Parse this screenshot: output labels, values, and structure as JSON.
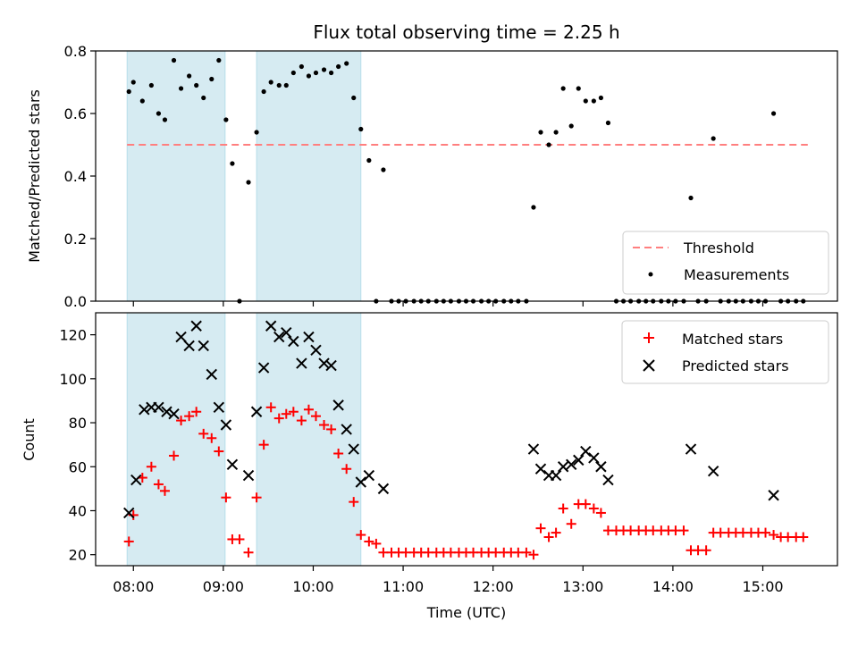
{
  "chart_data": {
    "title": "Flux total observing time = 2.25 h",
    "type": "scatter",
    "xlabel": "Time (UTC)",
    "xlim": [
      7.58,
      15.83
    ],
    "xticks": [
      {
        "value": 8,
        "label": "08:00"
      },
      {
        "value": 9,
        "label": "09:00"
      },
      {
        "value": 10,
        "label": "10:00"
      },
      {
        "value": 11,
        "label": "11:00"
      },
      {
        "value": 12,
        "label": "12:00"
      },
      {
        "value": 13,
        "label": "13:00"
      },
      {
        "value": 14,
        "label": "14:00"
      },
      {
        "value": 15,
        "label": "15:00"
      }
    ],
    "shaded_intervals": [
      [
        7.93,
        9.02
      ],
      [
        9.37,
        10.53
      ]
    ],
    "colors": {
      "shade": "#add8e6",
      "threshold": "#ff7f7f",
      "measurement": "#000000",
      "matched": "#ff0000",
      "predicted": "#000000"
    },
    "panels": [
      {
        "id": "ratio",
        "ylabel": "Matched/Predicted stars",
        "ylim": [
          0,
          0.8
        ],
        "yticks": [
          0,
          0.2,
          0.4,
          0.6,
          0.8
        ],
        "ytick_labels": [
          "0.0",
          "0.2",
          "0.4",
          "0.6",
          "0.8"
        ],
        "threshold": {
          "name": "Threshold",
          "value": 0.5,
          "x_range": [
            7.93,
            15.5
          ]
        },
        "legend": {
          "position": "lower-right",
          "entries": [
            "Threshold",
            "Measurements"
          ]
        },
        "series": [
          {
            "name": "Measurements",
            "marker": "dot",
            "x": [
              7.95,
              8.0,
              8.1,
              8.2,
              8.28,
              8.35,
              8.45,
              8.53,
              8.62,
              8.7,
              8.78,
              8.87,
              8.95,
              9.03,
              9.1,
              9.18,
              9.28,
              9.37,
              9.45,
              9.53,
              9.62,
              9.7,
              9.78,
              9.87,
              9.95,
              10.03,
              10.12,
              10.2,
              10.28,
              10.37,
              10.45,
              10.53,
              10.62,
              10.7,
              10.78,
              10.87,
              10.95,
              11.03,
              11.12,
              11.2,
              11.28,
              11.37,
              11.45,
              11.53,
              11.62,
              11.7,
              11.78,
              11.87,
              11.95,
              12.03,
              12.12,
              12.2,
              12.28,
              12.37,
              12.45,
              12.53,
              12.62,
              12.7,
              12.78,
              12.87,
              12.95,
              13.03,
              13.12,
              13.2,
              13.28,
              13.37,
              13.45,
              13.53,
              13.62,
              13.7,
              13.78,
              13.87,
              13.95,
              14.03,
              14.12,
              14.2,
              14.28,
              14.37,
              14.45,
              14.53,
              14.62,
              14.7,
              14.78,
              14.87,
              14.95,
              15.03,
              15.12,
              15.2,
              15.28,
              15.37,
              15.45
            ],
            "y": [
              0.67,
              0.7,
              0.64,
              0.69,
              0.6,
              0.58,
              0.77,
              0.68,
              0.72,
              0.69,
              0.65,
              0.71,
              0.77,
              0.58,
              0.44,
              0.0,
              0.38,
              0.54,
              0.67,
              0.7,
              0.69,
              0.69,
              0.73,
              0.75,
              0.72,
              0.73,
              0.74,
              0.73,
              0.75,
              0.76,
              0.65,
              0.55,
              0.45,
              0.0,
              0.42,
              0.0,
              0.0,
              0.0,
              0.0,
              0.0,
              0.0,
              0.0,
              0.0,
              0.0,
              0.0,
              0.0,
              0.0,
              0.0,
              0.0,
              0.0,
              0.0,
              0.0,
              0.0,
              0.0,
              0.3,
              0.54,
              0.5,
              0.54,
              0.68,
              0.56,
              0.68,
              0.64,
              0.64,
              0.65,
              0.57,
              0.0,
              0.0,
              0.0,
              0.0,
              0.0,
              0.0,
              0.0,
              0.0,
              0.0,
              0.0,
              0.33,
              0.0,
              0.0,
              0.52,
              0.0,
              0.0,
              0.0,
              0.0,
              0.0,
              0.0,
              0.0,
              0.6,
              0.0,
              0.0,
              0.0,
              0.0
            ]
          }
        ]
      },
      {
        "id": "count",
        "ylabel": "Count",
        "ylim": [
          15,
          130
        ],
        "yticks": [
          20,
          40,
          60,
          80,
          100,
          120
        ],
        "ytick_labels": [
          "20",
          "40",
          "60",
          "80",
          "100",
          "120"
        ],
        "legend": {
          "position": "upper-right",
          "entries": [
            "Matched stars",
            "Predicted stars"
          ]
        },
        "series": [
          {
            "name": "Matched stars",
            "marker": "plus",
            "x": [
              7.95,
              8.0,
              8.1,
              8.2,
              8.28,
              8.35,
              8.45,
              8.53,
              8.62,
              8.7,
              8.78,
              8.87,
              8.95,
              9.03,
              9.1,
              9.18,
              9.28,
              9.37,
              9.45,
              9.53,
              9.62,
              9.7,
              9.78,
              9.87,
              9.95,
              10.03,
              10.12,
              10.2,
              10.28,
              10.37,
              10.45,
              10.53,
              10.62,
              10.7,
              10.78,
              10.87,
              10.95,
              11.03,
              11.12,
              11.2,
              11.28,
              11.37,
              11.45,
              11.53,
              11.62,
              11.7,
              11.78,
              11.87,
              11.95,
              12.03,
              12.12,
              12.2,
              12.28,
              12.37,
              12.45,
              12.53,
              12.62,
              12.7,
              12.78,
              12.87,
              12.95,
              13.03,
              13.12,
              13.2,
              13.28,
              13.37,
              13.45,
              13.53,
              13.62,
              13.7,
              13.78,
              13.87,
              13.95,
              14.03,
              14.12,
              14.2,
              14.28,
              14.37,
              14.45,
              14.53,
              14.62,
              14.7,
              14.78,
              14.87,
              14.95,
              15.03,
              15.12,
              15.2,
              15.28,
              15.37,
              15.45
            ],
            "y": [
              26,
              38,
              55,
              60,
              52,
              49,
              65,
              81,
              83,
              85,
              75,
              73,
              67,
              46,
              27,
              27,
              21,
              46,
              70,
              87,
              82,
              84,
              85,
              81,
              86,
              83,
              79,
              77,
              66,
              59,
              44,
              29,
              26,
              25,
              21,
              21,
              21,
              21,
              21,
              21,
              21,
              21,
              21,
              21,
              21,
              21,
              21,
              21,
              21,
              21,
              21,
              21,
              21,
              21,
              20,
              32,
              28,
              30,
              41,
              34,
              43,
              43,
              41,
              39,
              31,
              31,
              31,
              31,
              31,
              31,
              31,
              31,
              31,
              31,
              31,
              22,
              22,
              22,
              30,
              30,
              30,
              30,
              30,
              30,
              30,
              30,
              29,
              28,
              28,
              28,
              28
            ]
          },
          {
            "name": "Predicted stars",
            "marker": "x",
            "x": [
              7.95,
              8.03,
              8.12,
              8.2,
              8.28,
              8.37,
              8.45,
              8.53,
              8.62,
              8.7,
              8.78,
              8.87,
              8.95,
              9.03,
              9.1,
              9.28,
              9.37,
              9.45,
              9.53,
              9.62,
              9.7,
              9.78,
              9.87,
              9.95,
              10.03,
              10.12,
              10.2,
              10.28,
              10.37,
              10.45,
              10.53,
              10.62,
              10.78,
              12.45,
              12.53,
              12.62,
              12.7,
              12.78,
              12.87,
              12.95,
              13.03,
              13.12,
              13.2,
              13.28,
              14.2,
              14.45,
              15.12
            ],
            "y": [
              39,
              54,
              86,
              87,
              87,
              85,
              84,
              119,
              115,
              124,
              115,
              102,
              87,
              79,
              61,
              56,
              85,
              105,
              124,
              119,
              121,
              117,
              107,
              119,
              113,
              107,
              106,
              88,
              77,
              68,
              53,
              56,
              50,
              68,
              59,
              56,
              56,
              60,
              61,
              63,
              67,
              64,
              60,
              54,
              68,
              58,
              47
            ]
          }
        ]
      }
    ]
  }
}
